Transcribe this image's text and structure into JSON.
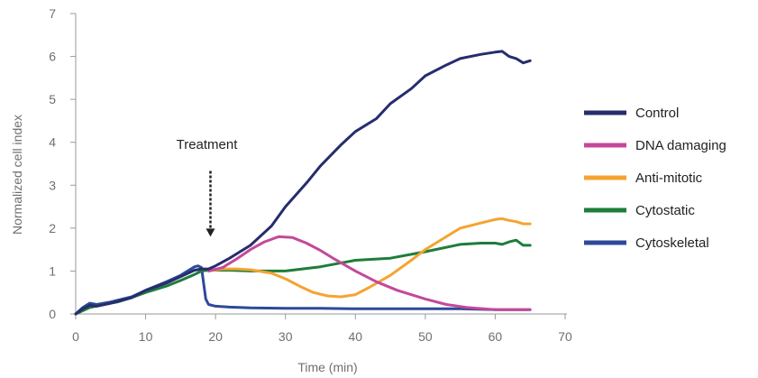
{
  "chart_data": {
    "type": "line",
    "xlabel": "Time (min)",
    "ylabel": "Normalized cell index",
    "xlim": [
      0,
      70
    ],
    "ylim": [
      0,
      7
    ],
    "xticks": [
      0,
      10,
      20,
      30,
      40,
      50,
      60,
      70
    ],
    "yticks": [
      0,
      1,
      2,
      3,
      4,
      5,
      6,
      7
    ],
    "grid": false,
    "legend_position": "right",
    "annotations": [
      {
        "text": "Treatment",
        "x": 18.5,
        "arrow_from_y": 3.5,
        "arrow_to_y": 1.8
      }
    ],
    "series": [
      {
        "name": "Control",
        "color": "#262c6e",
        "x": [
          0,
          1,
          2,
          3,
          5,
          8,
          10,
          13,
          15,
          17,
          18,
          19,
          20,
          22,
          25,
          28,
          30,
          33,
          35,
          38,
          40,
          43,
          45,
          48,
          50,
          53,
          55,
          58,
          60,
          61,
          62,
          63,
          64,
          65
        ],
        "y": [
          0,
          0.12,
          0.2,
          0.18,
          0.25,
          0.38,
          0.55,
          0.72,
          0.87,
          1.02,
          1.05,
          1.05,
          1.12,
          1.3,
          1.6,
          2.05,
          2.5,
          3.05,
          3.45,
          3.95,
          4.25,
          4.55,
          4.9,
          5.25,
          5.55,
          5.8,
          5.95,
          6.05,
          6.1,
          6.12,
          6.0,
          5.95,
          5.85,
          5.9
        ]
      },
      {
        "name": "DNA damaging",
        "color": "#c4489a",
        "x": [
          19,
          21,
          23,
          25,
          27,
          29,
          31,
          33,
          35,
          37,
          40,
          43,
          46,
          50,
          53,
          56,
          60,
          65
        ],
        "y": [
          1.0,
          1.08,
          1.28,
          1.5,
          1.68,
          1.8,
          1.78,
          1.65,
          1.48,
          1.28,
          1.0,
          0.75,
          0.55,
          0.35,
          0.22,
          0.15,
          0.1,
          0.1
        ]
      },
      {
        "name": "Anti-mitotic",
        "color": "#f4a431",
        "x": [
          19,
          21,
          23,
          25,
          28,
          30,
          32,
          34,
          36,
          38,
          40,
          42,
          45,
          48,
          50,
          53,
          55,
          58,
          60,
          61,
          62,
          63,
          64,
          65
        ],
        "y": [
          1.0,
          1.05,
          1.05,
          1.03,
          0.95,
          0.82,
          0.65,
          0.5,
          0.42,
          0.4,
          0.45,
          0.62,
          0.9,
          1.25,
          1.5,
          1.8,
          2.0,
          2.12,
          2.2,
          2.22,
          2.18,
          2.15,
          2.1,
          2.1
        ]
      },
      {
        "name": "Cytostatic",
        "color": "#1d7d3a",
        "x": [
          0,
          2,
          4,
          6,
          8,
          10,
          13,
          15,
          17,
          18,
          19,
          22,
          25,
          28,
          30,
          35,
          40,
          45,
          50,
          55,
          58,
          60,
          61,
          62,
          63,
          64,
          65
        ],
        "y": [
          0,
          0.15,
          0.22,
          0.28,
          0.38,
          0.5,
          0.65,
          0.78,
          0.92,
          1.0,
          1.02,
          1.02,
          1.0,
          1.0,
          1.0,
          1.1,
          1.25,
          1.3,
          1.45,
          1.62,
          1.65,
          1.65,
          1.62,
          1.68,
          1.72,
          1.6,
          1.6
        ]
      },
      {
        "name": "Cytoskeletal",
        "color": "#2d4a9a",
        "x": [
          0,
          1,
          2,
          3,
          5,
          8,
          10,
          13,
          15,
          16,
          17,
          17.5,
          18,
          18.3,
          18.6,
          19,
          20,
          22,
          25,
          30,
          35,
          40,
          45,
          50,
          55,
          60,
          65
        ],
        "y": [
          0,
          0.15,
          0.25,
          0.22,
          0.28,
          0.4,
          0.55,
          0.75,
          0.9,
          1.0,
          1.1,
          1.12,
          1.08,
          0.7,
          0.35,
          0.22,
          0.18,
          0.16,
          0.14,
          0.13,
          0.13,
          0.12,
          0.12,
          0.12,
          0.12,
          0.1,
          0.1
        ]
      }
    ]
  }
}
